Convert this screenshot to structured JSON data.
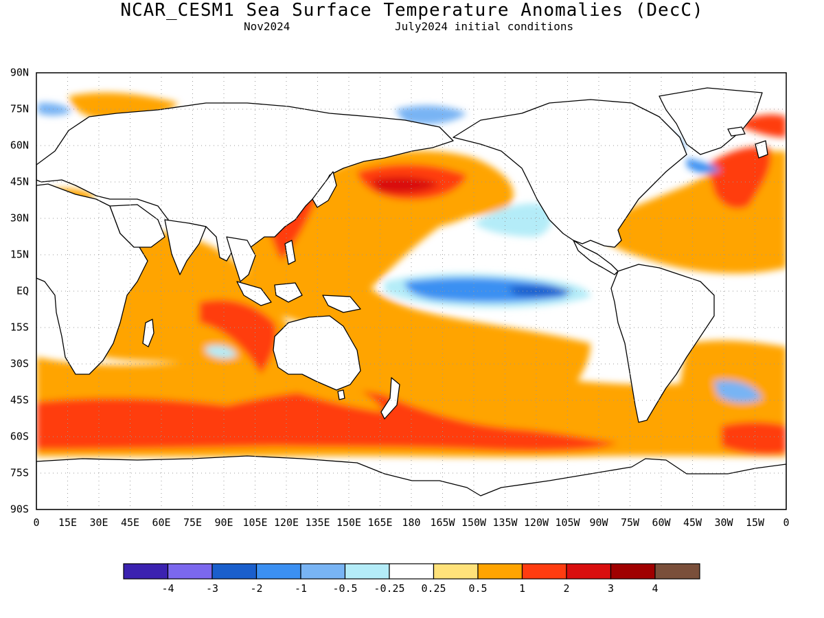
{
  "title": "NCAR_CESM1 Sea Surface Temperature Anomalies (DecC)",
  "subtitle_left": "Nov2024",
  "subtitle_right": "July2024 initial conditions",
  "map": {
    "projection": "equirectangular",
    "lon_range": [
      0,
      360
    ],
    "lat_range": [
      -90,
      90
    ],
    "grid": "dotted 15-degree"
  },
  "lat_ticks": [
    "90N",
    "75N",
    "60N",
    "45N",
    "30N",
    "15N",
    "EQ",
    "15S",
    "30S",
    "45S",
    "60S",
    "75S",
    "90S"
  ],
  "lon_ticks": [
    "0",
    "15E",
    "30E",
    "45E",
    "60E",
    "75E",
    "90E",
    "105E",
    "120E",
    "135E",
    "150E",
    "165E",
    "180",
    "165W",
    "150W",
    "135W",
    "120W",
    "105W",
    "90W",
    "75W",
    "60W",
    "45W",
    "30W",
    "15W",
    "0"
  ],
  "legend": {
    "colors": [
      "#3b22b0",
      "#7b68ee",
      "#1a5fcc",
      "#3b90f2",
      "#78b4f4",
      "#b4ecf8",
      "#ffffff",
      "#ffe27a",
      "#ffa400",
      "#ff3c10",
      "#d90e0e",
      "#a00000",
      "#7a4f3a"
    ],
    "labels": [
      "-4",
      "-3",
      "-2",
      "-1",
      "-0.5",
      "-0.25",
      "0.25",
      "0.5",
      "1",
      "2",
      "3",
      "4"
    ]
  },
  "colors": {
    "warm_light": "#ffe27a",
    "warm": "#ffa400",
    "hot": "#ff3c10",
    "hotter": "#d90e0e",
    "hottest": "#a00000",
    "cool_light": "#b4ecf8",
    "cool": "#78b4f4",
    "cold": "#3b90f2",
    "colder": "#1a5fcc"
  }
}
